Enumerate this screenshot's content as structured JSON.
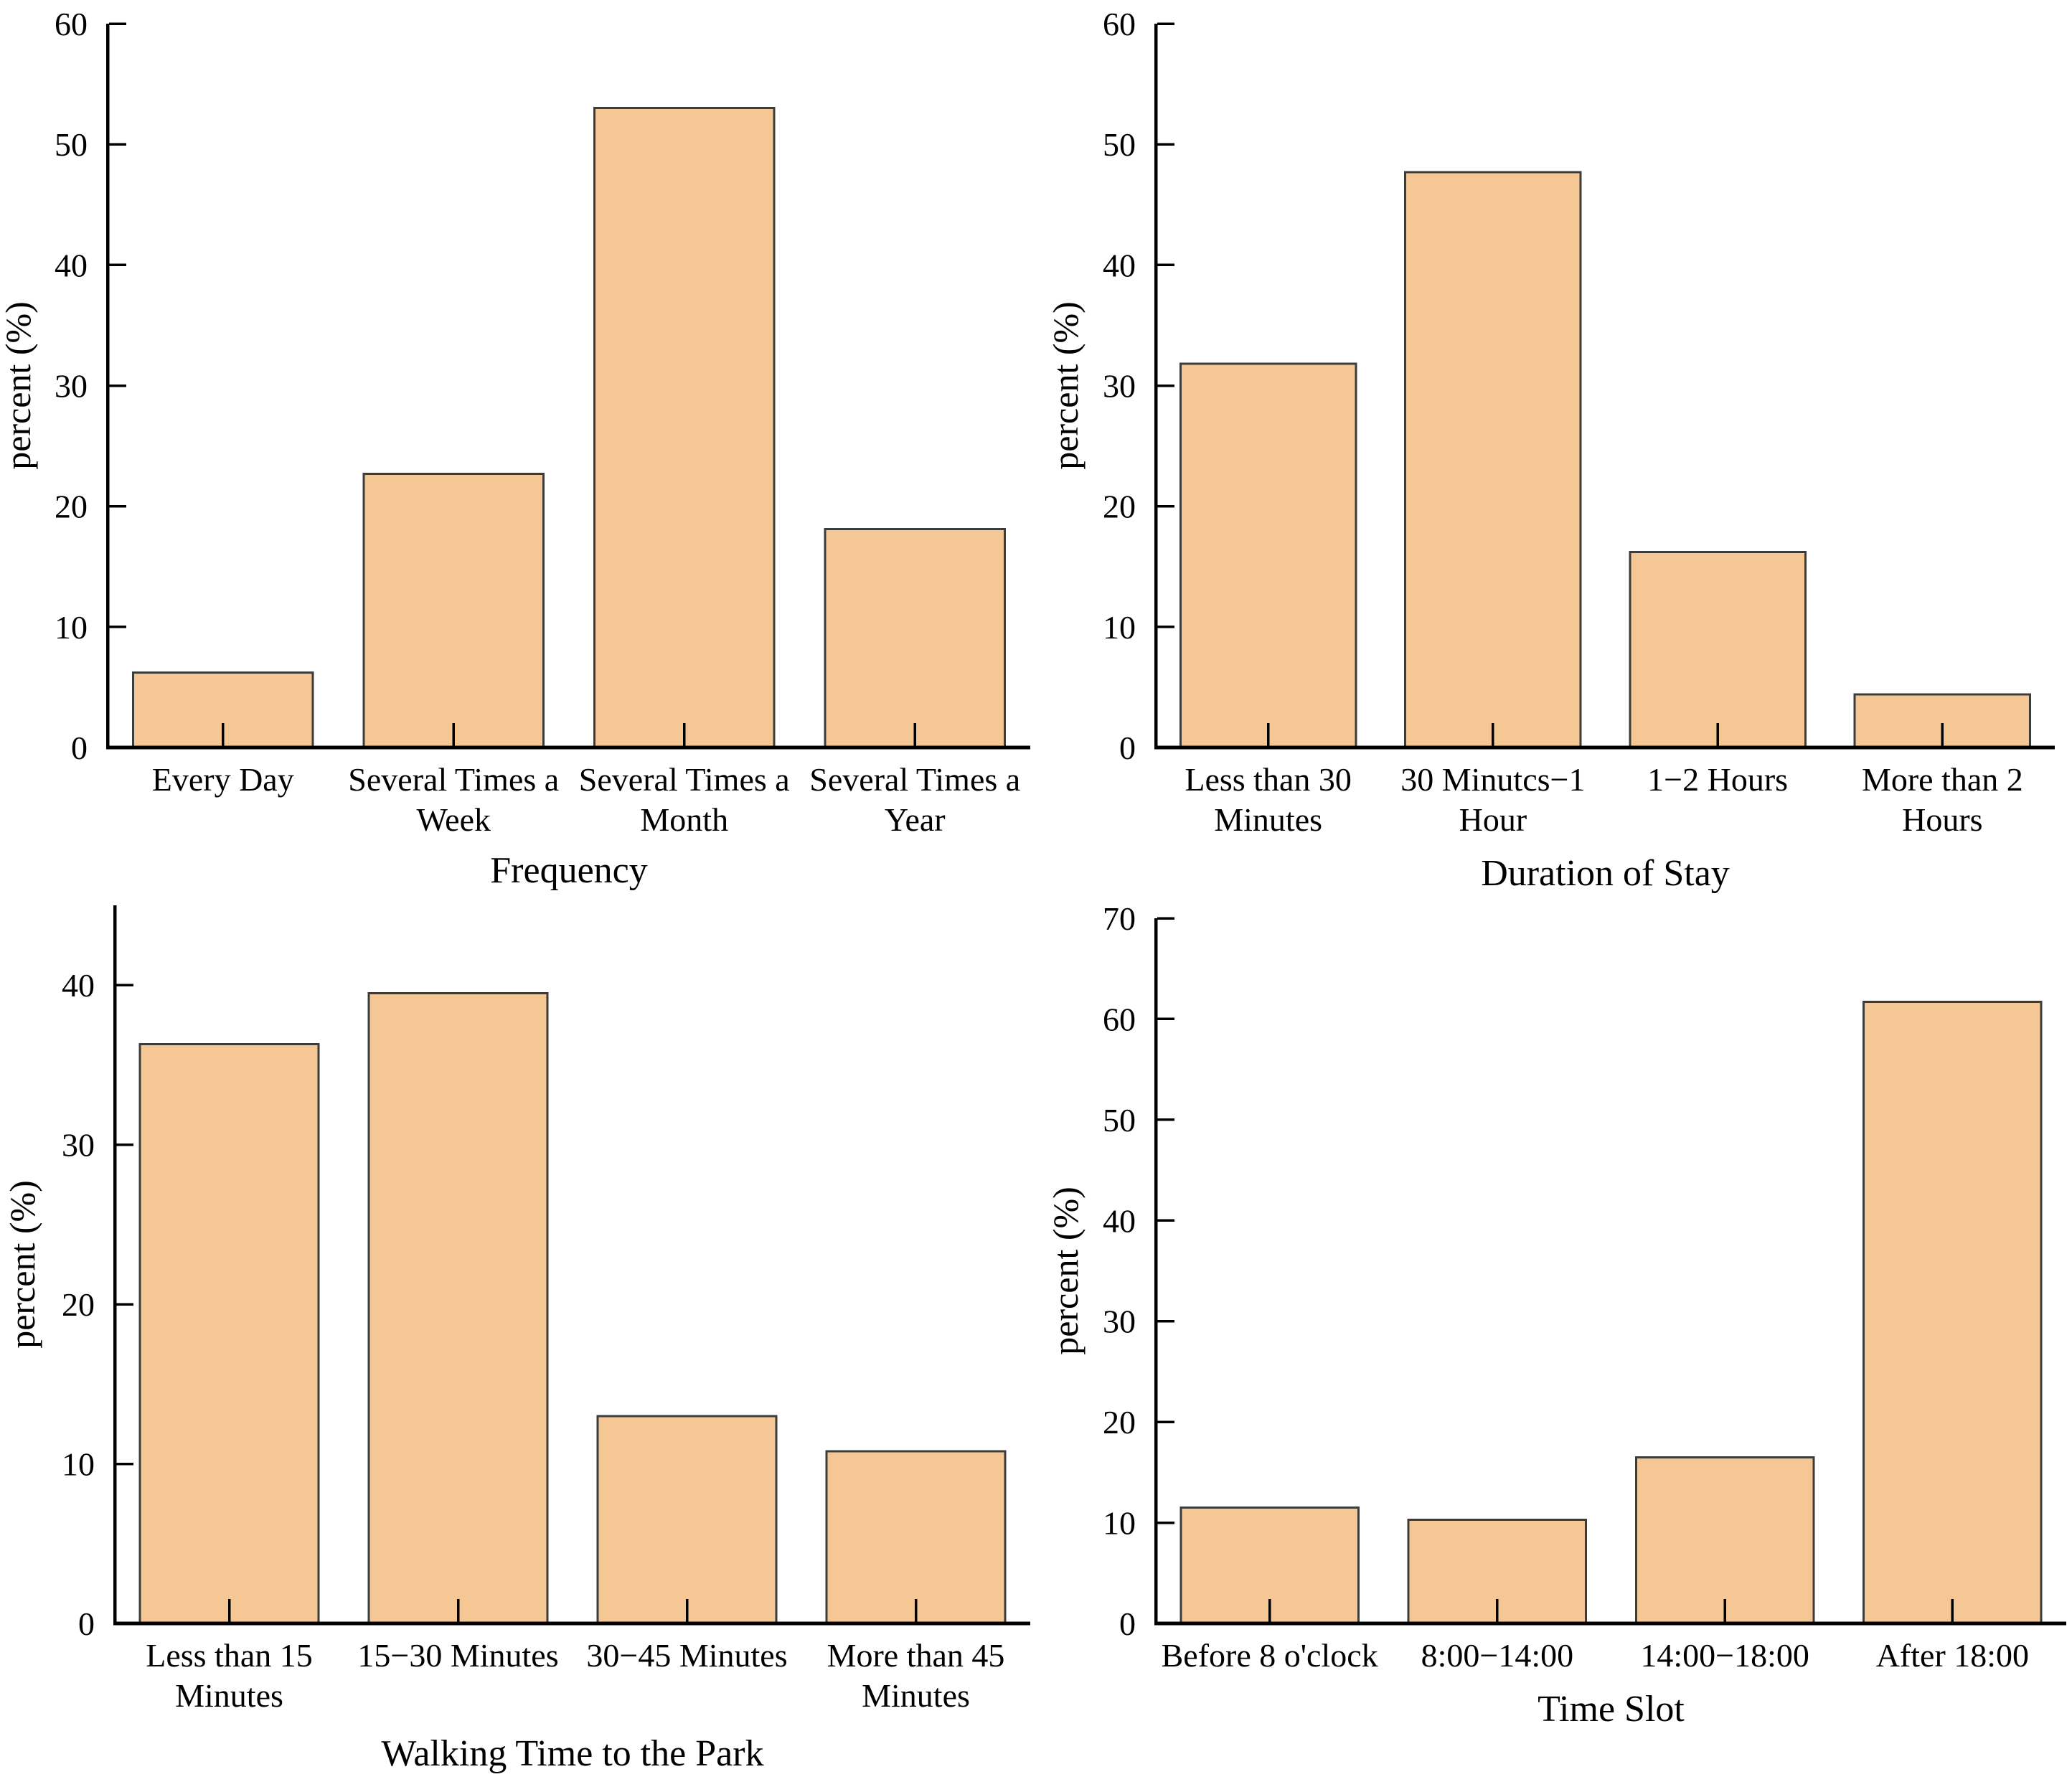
{
  "page": {
    "title": "Park visitation survey bar charts",
    "background": "#ffffff"
  },
  "colors": {
    "bar_fill": "#F5C795",
    "bar_edge": "#3C3C3C",
    "axis": "#000000",
    "text": "#000000"
  },
  "chart_data": [
    {
      "id": "frequency",
      "type": "bar",
      "title": "",
      "xlabel": "Frequency",
      "ylabel": "percent (%)",
      "categories": [
        "Every Day",
        "Several Times a\nWeek",
        "Several Times a\nMonth",
        "Several Times a\nYear"
      ],
      "values": [
        6.2,
        22.7,
        53.0,
        18.1
      ],
      "ylim": [
        0,
        60
      ],
      "yticks": [
        0,
        10,
        20,
        30,
        40,
        50,
        60
      ],
      "grid": false,
      "legend": null
    },
    {
      "id": "duration-of-stay",
      "type": "bar",
      "title": "",
      "xlabel": "Duration of Stay",
      "ylabel": "percent (%)",
      "categories": [
        "Less than 30\nMinutes",
        "30 Minutcs−1\nHour",
        "1−2 Hours",
        "More than 2\nHours"
      ],
      "values": [
        31.8,
        47.7,
        16.2,
        4.4
      ],
      "ylim": [
        0,
        60
      ],
      "yticks": [
        0,
        10,
        20,
        30,
        40,
        50,
        60
      ],
      "grid": false,
      "legend": null
    },
    {
      "id": "walking-time-to-the-park",
      "type": "bar",
      "title": "",
      "xlabel": "Walking Time to the Park",
      "ylabel": "percent (%)",
      "categories": [
        "Less than 15\nMinutes",
        "15−30 Minutes",
        "30−45 Minutes",
        "More than 45\nMinutes"
      ],
      "values": [
        36.3,
        39.5,
        13.0,
        10.8
      ],
      "ylim": [
        0,
        45
      ],
      "yticks": [
        0,
        10,
        20,
        30,
        40
      ],
      "grid": false,
      "legend": null
    },
    {
      "id": "time-slot",
      "type": "bar",
      "title": "",
      "xlabel": "Time Slot",
      "ylabel": "percent (%)",
      "categories": [
        "Before 8 o'clock",
        "8:00−14:00",
        "14:00−18:00",
        "After 18:00"
      ],
      "values": [
        11.5,
        10.3,
        16.5,
        61.7
      ],
      "ylim": [
        0,
        70
      ],
      "yticks": [
        0,
        10,
        20,
        30,
        40,
        50,
        60,
        70
      ],
      "grid": false,
      "legend": null
    }
  ]
}
